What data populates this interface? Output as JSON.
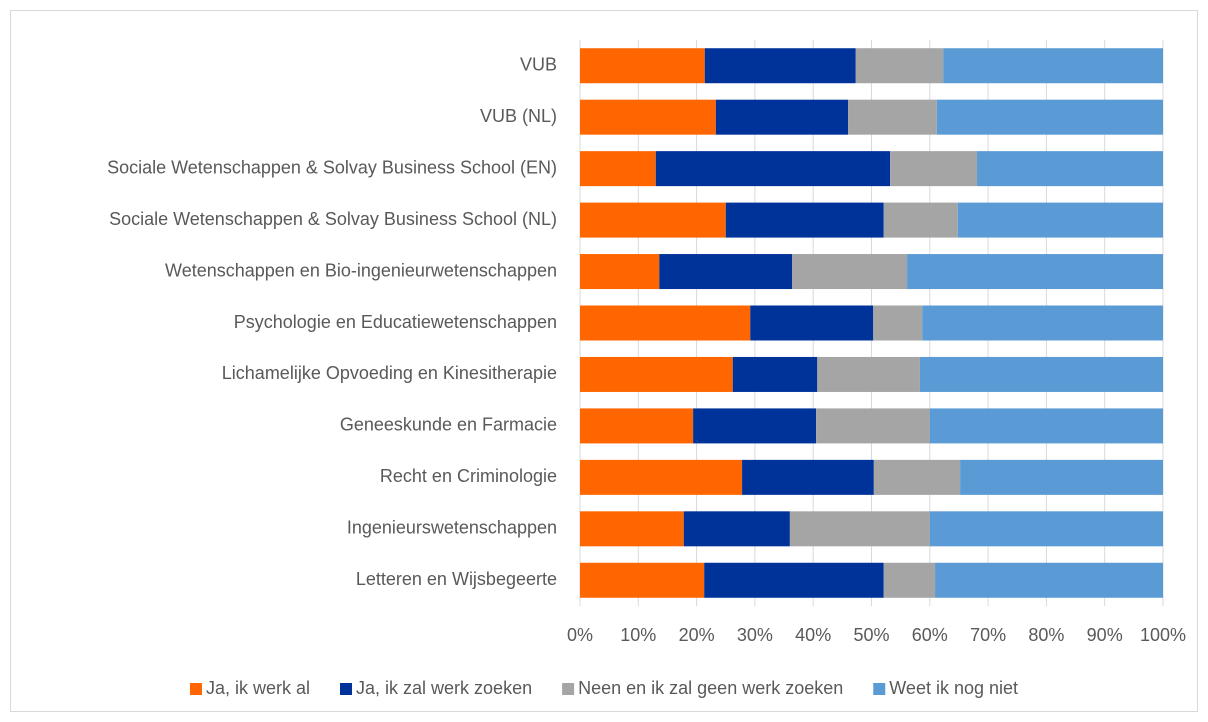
{
  "chart_data": {
    "type": "bar",
    "categories": [
      "VUB",
      "VUB (NL)",
      "Sociale Wetenschappen & Solvay Business School (EN)",
      "Sociale Wetenschappen & Solvay Business School (NL)",
      "Wetenschappen en Bio-ingenieurwetenschappen",
      "Psychologie en Educatiewetenschappen",
      "Lichamelijke Opvoeding en Kinesitherapie",
      "Geneeskunde en Farmacie",
      "Recht en Criminologie",
      "Ingenieurswetenschappen",
      "Letteren en Wijsbegeerte"
    ],
    "series": [
      {
        "name": "Ja, ik werk al",
        "color": "#ff6600",
        "values": [
          21.4,
          23.3,
          13.0,
          25.0,
          13.6,
          29.2,
          26.2,
          19.4,
          27.8,
          17.8,
          21.3
        ]
      },
      {
        "name": "Ja, ik zal werk zoeken",
        "color": "#003399",
        "values": [
          25.9,
          22.7,
          40.2,
          27.1,
          22.8,
          21.1,
          14.5,
          21.1,
          22.6,
          18.2,
          30.8
        ]
      },
      {
        "name": "Neen en ik zal geen werk zoeken",
        "color": "#a5a5a5",
        "values": [
          15.0,
          15.2,
          14.9,
          12.7,
          19.7,
          8.4,
          17.6,
          19.5,
          14.8,
          24.0,
          8.8
        ]
      },
      {
        "name": "Weet ik nog niet",
        "color": "#5b9bd5",
        "values": [
          37.7,
          38.8,
          31.9,
          35.2,
          43.9,
          41.3,
          41.7,
          40.0,
          34.8,
          40.0,
          39.1
        ]
      }
    ],
    "xlim": [
      0,
      100
    ],
    "xticks": [
      {
        "value": 0,
        "label": "0%"
      },
      {
        "value": 10,
        "label": "10%"
      },
      {
        "value": 20,
        "label": "20%"
      },
      {
        "value": 30,
        "label": "30%"
      },
      {
        "value": 40,
        "label": "40%"
      },
      {
        "value": 50,
        "label": "50%"
      },
      {
        "value": 60,
        "label": "60%"
      },
      {
        "value": 70,
        "label": "70%"
      },
      {
        "value": 80,
        "label": "80%"
      },
      {
        "value": 90,
        "label": "90%"
      },
      {
        "value": 100,
        "label": "100%"
      }
    ],
    "grid": true,
    "legend": "bottom"
  }
}
